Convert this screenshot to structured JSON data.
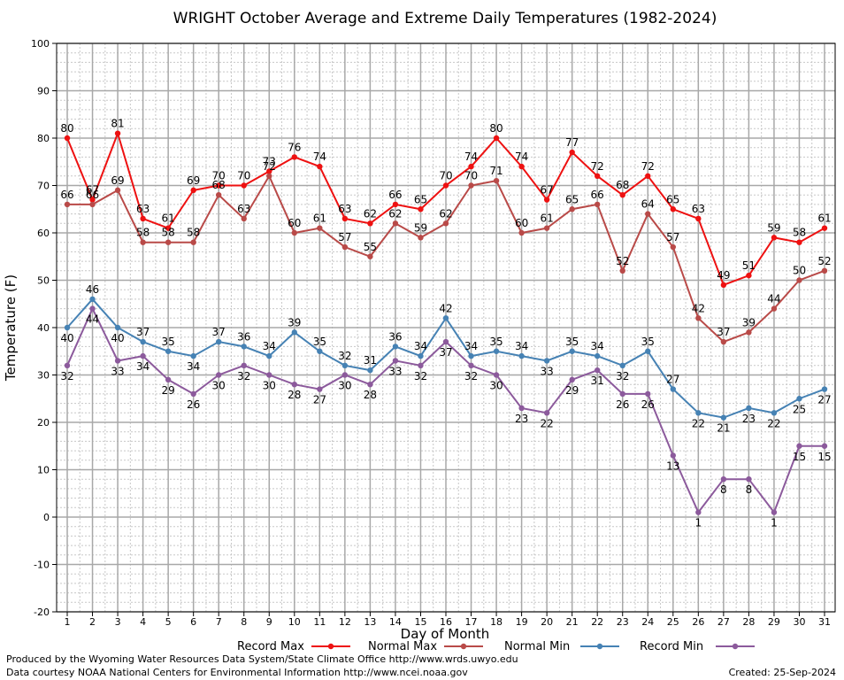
{
  "chart_data": {
    "type": "line",
    "title": "WRIGHT October Average and Extreme Daily Temperatures (1982-2024)",
    "xlabel": "Day of Month",
    "ylabel": "Temperature (F)",
    "ylim": [
      -20,
      100
    ],
    "xlim": [
      1,
      31
    ],
    "grid": true,
    "categories": [
      "1",
      "2",
      "3",
      "4",
      "5",
      "6",
      "7",
      "8",
      "9",
      "10",
      "11",
      "12",
      "13",
      "14",
      "15",
      "16",
      "17",
      "18",
      "19",
      "20",
      "21",
      "22",
      "23",
      "24",
      "25",
      "26",
      "27",
      "28",
      "29",
      "30",
      "31"
    ],
    "y_ticks": [
      "-20",
      "-10",
      "0",
      "10",
      "20",
      "30",
      "40",
      "50",
      "60",
      "70",
      "80",
      "90",
      "100"
    ],
    "legend_position": "bottom",
    "series": [
      {
        "name": "Record Max",
        "color": "#ee1111",
        "values": [
          80,
          67,
          81,
          63,
          61,
          69,
          70,
          70,
          73,
          76,
          74,
          63,
          62,
          66,
          65,
          70,
          74,
          80,
          74,
          67,
          77,
          72,
          68,
          72,
          65,
          63,
          49,
          51,
          59,
          58,
          61
        ],
        "label_side": "above"
      },
      {
        "name": "Normal Max",
        "color": "#b94a48",
        "values": [
          66,
          66,
          69,
          58,
          58,
          58,
          68,
          63,
          72,
          60,
          61,
          57,
          55,
          62,
          59,
          62,
          70,
          71,
          60,
          61,
          65,
          66,
          52,
          64,
          57,
          42,
          37,
          39,
          44,
          50,
          52
        ],
        "label_side": "above"
      },
      {
        "name": "Normal Min",
        "color": "#4682b4",
        "values": [
          40,
          46,
          40,
          37,
          35,
          34,
          37,
          36,
          34,
          39,
          35,
          32,
          31,
          36,
          34,
          42,
          34,
          35,
          34,
          33,
          35,
          34,
          32,
          35,
          27,
          22,
          21,
          23,
          22,
          25,
          27
        ],
        "label_side": "mixed"
      },
      {
        "name": "Record Min",
        "color": "#8c5a9c",
        "values": [
          32,
          44,
          33,
          34,
          29,
          26,
          30,
          32,
          30,
          28,
          27,
          30,
          28,
          33,
          32,
          37,
          32,
          30,
          23,
          22,
          29,
          31,
          26,
          26,
          13,
          1,
          8,
          8,
          1,
          15,
          15
        ],
        "label_side": "below"
      }
    ]
  },
  "footer": {
    "line1": "Produced by the Wyoming Water Resources Data System/State Climate Office http://www.wrds.uwyo.edu",
    "line2": "Data courtesy NOAA National Centers for Environmental Information http://www.ncei.noaa.gov",
    "created": "Created:  25-Sep-2024"
  }
}
